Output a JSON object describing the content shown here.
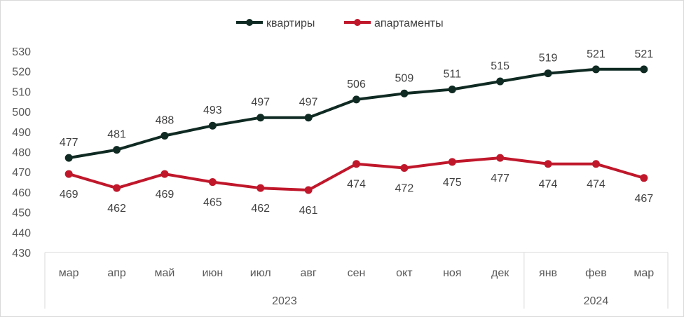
{
  "chart_data": {
    "type": "line",
    "categories": [
      "мар",
      "апр",
      "май",
      "июн",
      "июл",
      "авг",
      "сен",
      "окт",
      "ноя",
      "дек",
      "янв",
      "фев",
      "мар"
    ],
    "year_groups": [
      {
        "label": "2023",
        "count": 10
      },
      {
        "label": "2024",
        "count": 3
      }
    ],
    "series": [
      {
        "name": "квартиры",
        "color": "#0f2a22",
        "label_position": "above",
        "values": [
          477,
          481,
          488,
          493,
          497,
          497,
          506,
          509,
          511,
          515,
          519,
          521,
          521
        ]
      },
      {
        "name": "апартаменты",
        "color": "#c0172b",
        "label_position": "below",
        "values": [
          469,
          462,
          469,
          465,
          462,
          461,
          474,
          472,
          475,
          477,
          474,
          474,
          467
        ]
      }
    ],
    "yticks": [
      430,
      440,
      450,
      460,
      470,
      480,
      490,
      500,
      510,
      520,
      530
    ],
    "ylim": [
      430,
      530
    ],
    "grid": false,
    "legend_position": "top-center"
  }
}
